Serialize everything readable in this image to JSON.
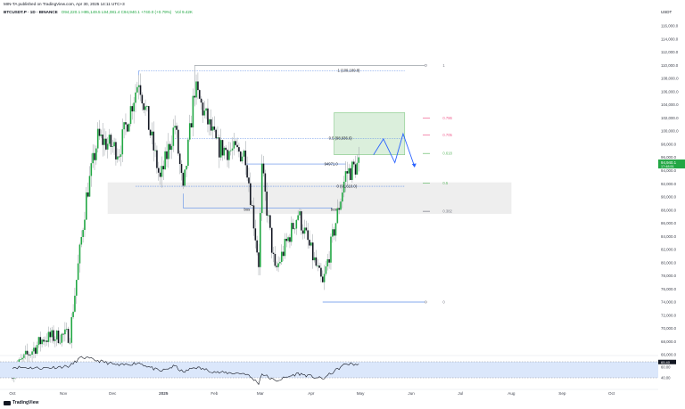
{
  "header": {
    "published": "MIN-TA published on TradingView.com, Apr 30, 2025 14:11 UTC+3",
    "symbol_line": "BTCUSDT.P · 1D · BINANCE",
    "ohlc": "O94,220.1  H95,149.5  L94,081.4  C94,940.1  +740.0 (+0.79%)",
    "volume": "Vol 9.42K"
  },
  "footer": {
    "brand": "TradingView"
  },
  "colors": {
    "up": "#26a69a",
    "up_main": "#22a744",
    "down": "#131722",
    "wick": "#9aa0a6",
    "zone_green": "#c8e6c9",
    "zone_gray": "#e0e0e0",
    "fib_red": "#f06292",
    "fib_green": "#66bb6a",
    "fib_blue": "#5c8de8",
    "arrow": "#2962ff",
    "rsi_band": "#dbe7fb"
  },
  "chart_data": {
    "type": "candlestick",
    "currency_label": "USDT",
    "price_axis_ticks": [
      66000,
      68000,
      70000,
      72000,
      74000,
      76000,
      78000,
      80000,
      82000,
      84000,
      86000,
      88000,
      90000,
      92000,
      94000,
      96000,
      98000,
      100000,
      102000,
      104000,
      106000,
      108000,
      110000,
      112000,
      114000,
      116000
    ],
    "price_axis_labels": [
      "66,000.0",
      "68,000.0",
      "70,000.0",
      "72,000.0",
      "74,000.0",
      "76,000.0",
      "78,000.0",
      "80,000.0",
      "82,000.0",
      "84,000.0",
      "86,000.0",
      "88,000.0",
      "90,000.0",
      "92,000.0",
      "94,000.0",
      "96,000.0",
      "98,000.0",
      "100,000.0",
      "102,000.0",
      "104,000.0",
      "106,000.0",
      "108,000.0",
      "110,000.0",
      "112,000.0",
      "114,000.0",
      "116,000.0"
    ],
    "price_range": [
      66000,
      117500
    ],
    "last_price_label": "94,940.1",
    "last_price_sub": "17:48:51",
    "time_axis_labels": [
      "Oct",
      "Nov",
      "Dec",
      "2025",
      "Feb",
      "Mar",
      "Apr",
      "May",
      "Jun",
      "Jul",
      "Aug",
      "Sep",
      "Oct"
    ],
    "key_points": [
      {
        "date": "2024-10-01",
        "price": 63500
      },
      {
        "date": "2024-10-20",
        "price": 68500
      },
      {
        "date": "2024-11-05",
        "price": 69000
      },
      {
        "date": "2024-11-15",
        "price": 90000
      },
      {
        "date": "2024-11-22",
        "price": 99000
      },
      {
        "date": "2024-12-05",
        "price": 97000
      },
      {
        "date": "2024-12-17",
        "price": 108000
      },
      {
        "date": "2024-12-30",
        "price": 92500
      },
      {
        "date": "2025-01-08",
        "price": 101000
      },
      {
        "date": "2025-01-13",
        "price": 90500
      },
      {
        "date": "2025-01-20",
        "price": 106500
      },
      {
        "date": "2025-02-03",
        "price": 97500
      },
      {
        "date": "2025-02-20",
        "price": 96500
      },
      {
        "date": "2025-02-28",
        "price": 80000
      },
      {
        "date": "2025-03-02",
        "price": 94000
      },
      {
        "date": "2025-03-10",
        "price": 78500
      },
      {
        "date": "2025-03-24",
        "price": 87500
      },
      {
        "date": "2025-04-08",
        "price": 76500
      },
      {
        "date": "2025-04-22",
        "price": 93500
      },
      {
        "date": "2025-04-30",
        "price": 94940
      }
    ],
    "fib_levels": [
      {
        "label": "1",
        "ratio": 1,
        "price": 110000
      },
      {
        "label": "0.786",
        "ratio": 0.786,
        "price": 102000
      },
      {
        "label": "0.705",
        "ratio": 0.705,
        "price": 99400
      },
      {
        "label": "0.618",
        "ratio": 0.618,
        "price": 96600
      },
      {
        "label": "0.5",
        "ratio": 0.5,
        "price": 92100
      },
      {
        "label": "0.382",
        "ratio": 0.382,
        "price": 87800
      },
      {
        "label": "0",
        "ratio": 0,
        "price": 74000
      }
    ],
    "annotations": [
      {
        "text": "1 (109,189.8)",
        "price": 109200
      },
      {
        "text": "0.5 (98,936.6)",
        "price": 98900
      },
      {
        "text": "0 (91,610.0)",
        "price": 91600
      },
      {
        "text": "94971.0",
        "price": 95000
      },
      {
        "text": "bos",
        "price": 88300
      },
      {
        "text": "bos",
        "price": 88300
      }
    ],
    "zones": [
      {
        "name": "target-zone",
        "date_from": "2025-04-15",
        "date_to": "2025-05-28",
        "price_from": 96400,
        "price_to": 102800
      },
      {
        "name": "support-zone",
        "date_from": "2024-11-28",
        "date_to": "2025-08-01",
        "price_from": 87400,
        "price_to": 92200
      }
    ],
    "projection_path": [
      {
        "date": "2025-05-09",
        "price": 96400
      },
      {
        "date": "2025-05-15",
        "price": 98800
      },
      {
        "date": "2025-05-22",
        "price": 95200
      },
      {
        "date": "2025-05-27",
        "price": 99600
      },
      {
        "date": "2025-06-03",
        "price": 94600
      }
    ],
    "rsi": {
      "ticks": [
        40,
        60
      ],
      "tick_labels": [
        "40.00",
        "60.00"
      ],
      "value_label": "65.40",
      "band": [
        40,
        70
      ],
      "range": [
        20,
        80
      ],
      "key_points": [
        {
          "date": "2024-10-01",
          "value": 60
        },
        {
          "date": "2024-10-20",
          "value": 58
        },
        {
          "date": "2024-11-05",
          "value": 62
        },
        {
          "date": "2024-11-12",
          "value": 79
        },
        {
          "date": "2024-11-22",
          "value": 72
        },
        {
          "date": "2024-12-05",
          "value": 63
        },
        {
          "date": "2024-12-17",
          "value": 68
        },
        {
          "date": "2024-12-30",
          "value": 52
        },
        {
          "date": "2025-01-08",
          "value": 62
        },
        {
          "date": "2025-01-13",
          "value": 50
        },
        {
          "date": "2025-01-20",
          "value": 60
        },
        {
          "date": "2025-02-03",
          "value": 50
        },
        {
          "date": "2025-02-20",
          "value": 48
        },
        {
          "date": "2025-02-28",
          "value": 30
        },
        {
          "date": "2025-03-02",
          "value": 48
        },
        {
          "date": "2025-03-10",
          "value": 34
        },
        {
          "date": "2025-03-24",
          "value": 48
        },
        {
          "date": "2025-04-08",
          "value": 38
        },
        {
          "date": "2025-04-22",
          "value": 66
        },
        {
          "date": "2025-04-30",
          "value": 65
        }
      ]
    }
  }
}
